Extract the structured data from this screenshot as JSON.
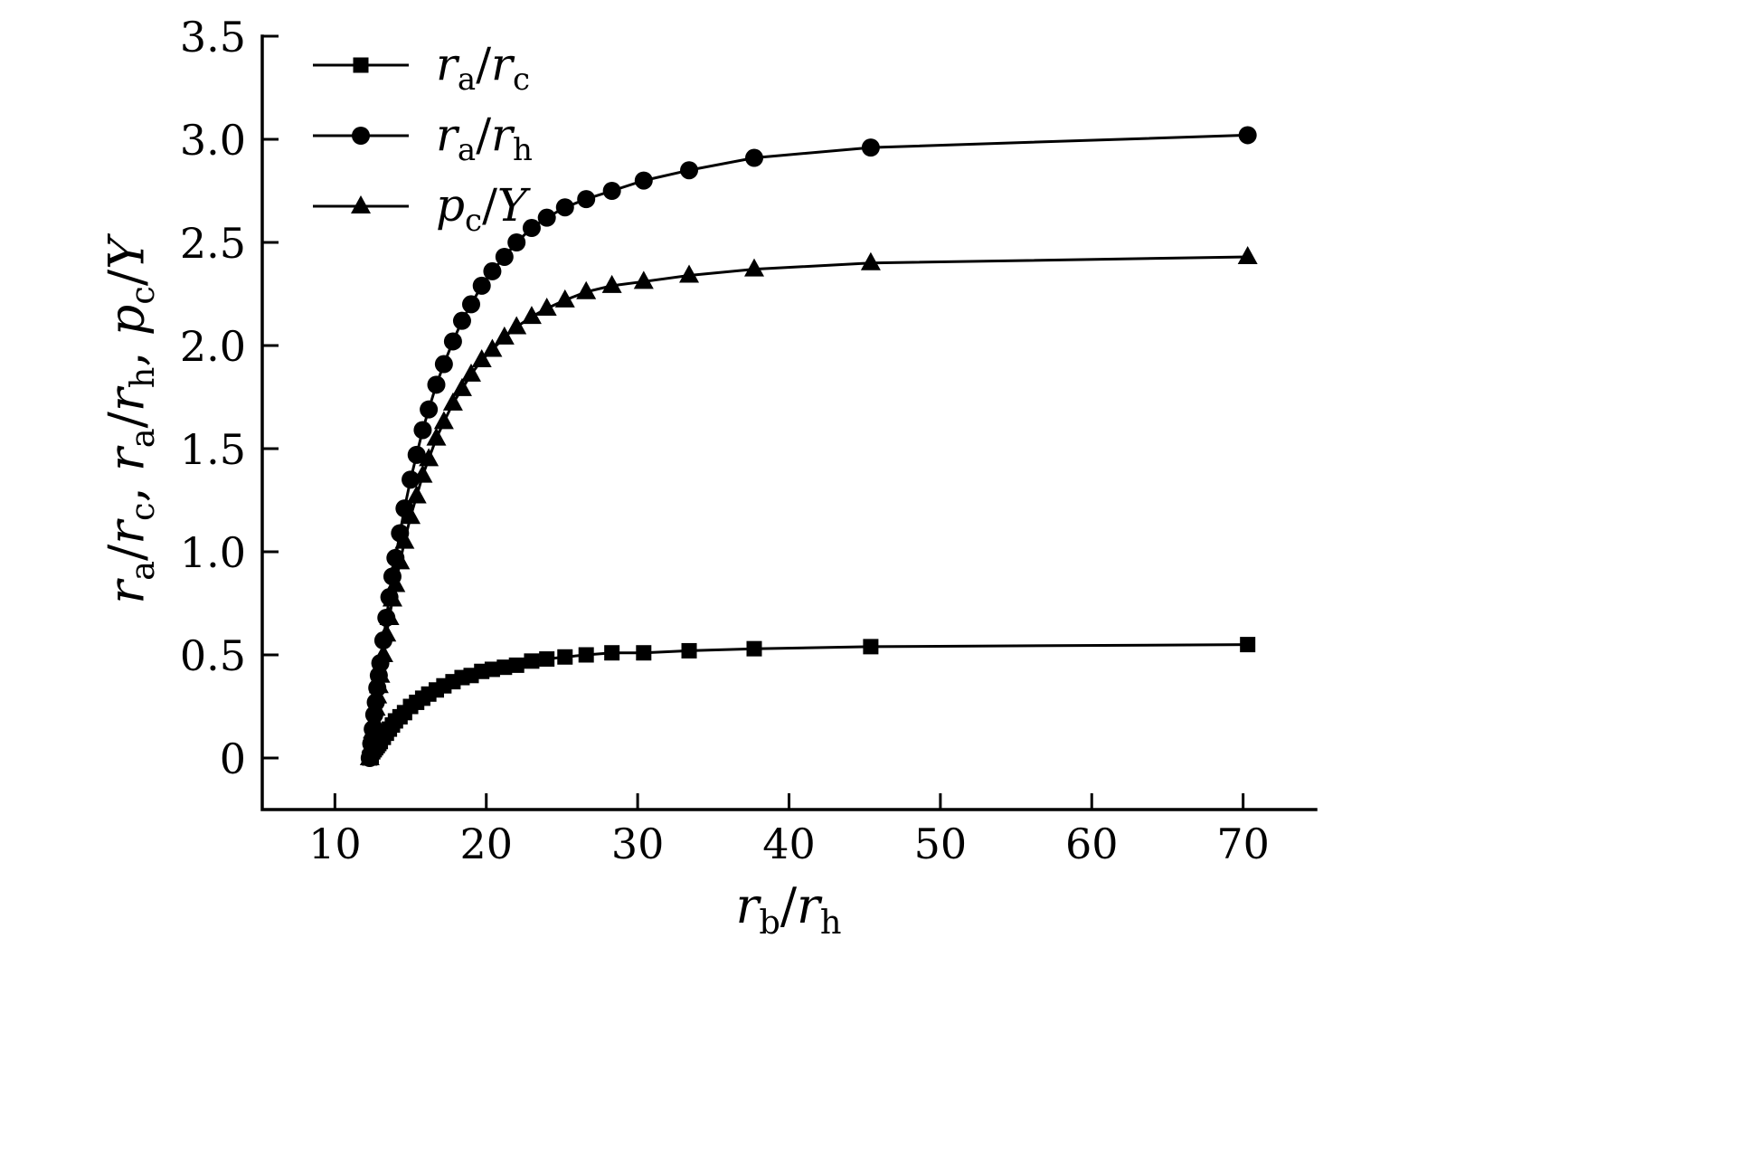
{
  "figure": {
    "background": "#ffffff",
    "ink_color": "#000000"
  },
  "chart_data": {
    "type": "line",
    "title": "",
    "xlabel": "r_b/r_h",
    "ylabel": "r_a/r_c, r_a/r_h, p_c/Y",
    "grid": false,
    "legend_position": "top-left",
    "xlim": [
      5.2,
      74.8
    ],
    "ylim": [
      -0.25,
      3.5
    ],
    "x_ticks": {
      "values": [
        10,
        20,
        30,
        40,
        50,
        60,
        70
      ],
      "labels": [
        "10",
        "20",
        "30",
        "40",
        "50",
        "60",
        "70"
      ]
    },
    "y_ticks": {
      "values": [
        0,
        0.5,
        1.0,
        1.5,
        2.0,
        2.5,
        3.0,
        3.5
      ],
      "labels": [
        "0",
        "0.5",
        "1.0",
        "1.5",
        "2.0",
        "2.5",
        "3.0",
        "3.5"
      ]
    },
    "x": [
      12.3,
      12.4,
      12.5,
      12.6,
      12.7,
      12.8,
      12.9,
      13.0,
      13.2,
      13.4,
      13.6,
      13.8,
      14.0,
      14.3,
      14.6,
      15.0,
      15.4,
      15.8,
      16.2,
      16.7,
      17.2,
      17.8,
      18.4,
      19.0,
      19.7,
      20.4,
      21.2,
      22.0,
      23.0,
      24.0,
      25.2,
      26.6,
      28.3,
      30.4,
      33.4,
      37.7,
      45.4,
      70.3
    ],
    "series": [
      {
        "name": "r_a/r_c",
        "marker": "square",
        "values": [
          0,
          0.01,
          0.03,
          0.04,
          0.05,
          0.06,
          0.07,
          0.08,
          0.1,
          0.12,
          0.14,
          0.16,
          0.18,
          0.2,
          0.22,
          0.25,
          0.27,
          0.29,
          0.31,
          0.33,
          0.35,
          0.37,
          0.39,
          0.4,
          0.42,
          0.43,
          0.44,
          0.45,
          0.47,
          0.48,
          0.49,
          0.5,
          0.51,
          0.51,
          0.52,
          0.53,
          0.54,
          0.55
        ]
      },
      {
        "name": "r_a/r_h",
        "marker": "circle",
        "values": [
          0,
          0.07,
          0.14,
          0.21,
          0.27,
          0.34,
          0.4,
          0.46,
          0.57,
          0.68,
          0.78,
          0.88,
          0.97,
          1.09,
          1.21,
          1.35,
          1.47,
          1.59,
          1.69,
          1.81,
          1.91,
          2.02,
          2.12,
          2.2,
          2.29,
          2.36,
          2.43,
          2.5,
          2.57,
          2.62,
          2.67,
          2.71,
          2.75,
          2.8,
          2.85,
          2.91,
          2.96,
          3.02
        ]
      },
      {
        "name": "p_c/Y",
        "marker": "triangle",
        "values": [
          0,
          0.06,
          0.13,
          0.18,
          0.24,
          0.3,
          0.35,
          0.4,
          0.5,
          0.6,
          0.68,
          0.77,
          0.84,
          0.95,
          1.05,
          1.17,
          1.27,
          1.37,
          1.45,
          1.55,
          1.63,
          1.72,
          1.79,
          1.86,
          1.93,
          1.98,
          2.04,
          2.09,
          2.14,
          2.18,
          2.22,
          2.26,
          2.29,
          2.31,
          2.34,
          2.37,
          2.4,
          2.43
        ]
      }
    ]
  }
}
